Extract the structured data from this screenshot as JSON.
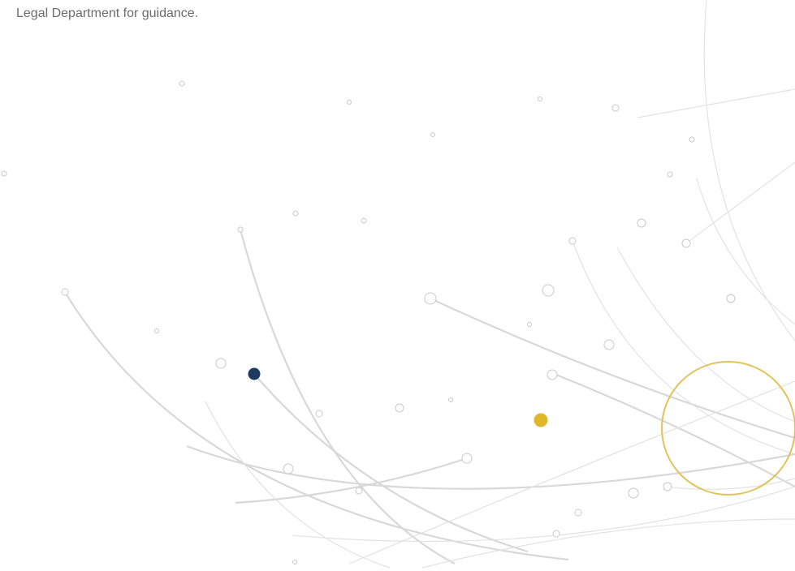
{
  "page": {
    "text": "Legal Department for guidance."
  }
}
